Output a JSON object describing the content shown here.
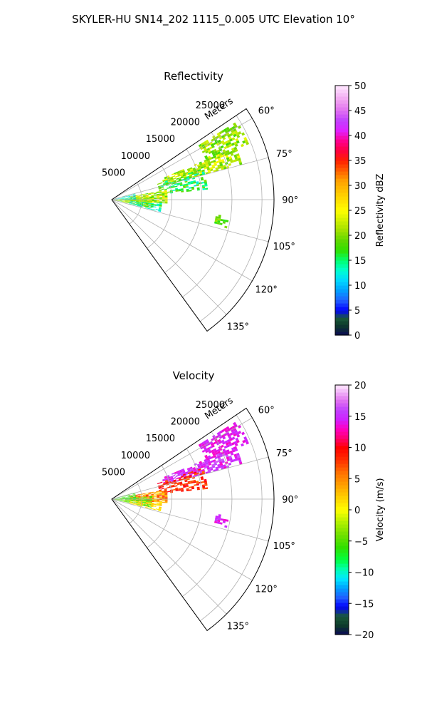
{
  "figure": {
    "title": "SKYLER-HU  SN14_202  1115_0.005 UTC Elevation 10°"
  },
  "chart_data": [
    {
      "type": "heatmap",
      "projection": "polar-sector",
      "title": "Reflectivity",
      "radial_axis_label": "Meters",
      "radial_ticks": [
        5000,
        10000,
        15000,
        20000,
        25000
      ],
      "radial_tick_labels": [
        "5000",
        "10000",
        "15000",
        "20000",
        "25000"
      ],
      "radial_range": [
        0,
        27000
      ],
      "azimuth_range_deg": [
        56,
        144
      ],
      "azimuth_ticks_deg": [
        60,
        75,
        90,
        105,
        120,
        135
      ],
      "azimuth_tick_labels": [
        "60°",
        "75°",
        "90°",
        "105°",
        "120°",
        "135°"
      ],
      "grid": true,
      "colorbar": {
        "label": "Reflectivity dBZ",
        "range": [
          0,
          50
        ],
        "ticks": [
          0,
          5,
          10,
          15,
          20,
          25,
          30,
          35,
          40,
          45,
          50
        ],
        "tick_labels": [
          "0",
          "5",
          "10",
          "15",
          "20",
          "25",
          "30",
          "35",
          "40",
          "45",
          "50"
        ],
        "stops": [
          {
            "v": 0,
            "color": "#0a0a55"
          },
          {
            "v": 2,
            "color": "#0d3a2a"
          },
          {
            "v": 3.5,
            "color": "#1a5a3a"
          },
          {
            "v": 5,
            "color": "#0000ff"
          },
          {
            "v": 7,
            "color": "#2060ff"
          },
          {
            "v": 9,
            "color": "#00a0ff"
          },
          {
            "v": 11,
            "color": "#00d8ff"
          },
          {
            "v": 13,
            "color": "#00ffd0"
          },
          {
            "v": 15,
            "color": "#00ff70"
          },
          {
            "v": 17,
            "color": "#30e000"
          },
          {
            "v": 19,
            "color": "#60d800"
          },
          {
            "v": 21,
            "color": "#a0e000"
          },
          {
            "v": 23,
            "color": "#d0f000"
          },
          {
            "v": 25,
            "color": "#ffff00"
          },
          {
            "v": 28,
            "color": "#ffd000"
          },
          {
            "v": 31,
            "color": "#ffa000"
          },
          {
            "v": 33,
            "color": "#ff6000"
          },
          {
            "v": 35,
            "color": "#ff2000"
          },
          {
            "v": 37,
            "color": "#ff0040"
          },
          {
            "v": 39,
            "color": "#ff0090"
          },
          {
            "v": 41,
            "color": "#e020ff"
          },
          {
            "v": 43,
            "color": "#c040ff"
          },
          {
            "v": 45,
            "color": "#e070f0"
          },
          {
            "v": 47,
            "color": "#f0a0f0"
          },
          {
            "v": 50,
            "color": "#ffe8ff"
          }
        ]
      },
      "echo_regions": [
        {
          "az": [
            58,
            68
          ],
          "r": [
            17000,
            24500
          ],
          "v": [
            17,
            24
          ],
          "density": 0.62
        },
        {
          "az": [
            67,
            75
          ],
          "r": [
            9000,
            22500
          ],
          "v": [
            18,
            26
          ],
          "density": 0.7
        },
        {
          "az": [
            71,
            84
          ],
          "r": [
            8000,
            16000
          ],
          "v": [
            12,
            21
          ],
          "density": 0.55
        },
        {
          "az": [
            80,
            94
          ],
          "r": [
            3000,
            9000
          ],
          "v": [
            17,
            28
          ],
          "density": 0.8
        },
        {
          "az": [
            86,
            102
          ],
          "r": [
            0,
            6500
          ],
          "v": [
            16,
            25
          ],
          "density": 0.8
        },
        {
          "az": [
            94,
            104
          ],
          "r": [
            3000,
            8000
          ],
          "v": [
            10,
            18
          ],
          "density": 0.55
        },
        {
          "az": [
            74,
            90
          ],
          "r": [
            0,
            4000
          ],
          "v": [
            8,
            16
          ],
          "density": 0.5
        },
        {
          "az": [
            98,
            104
          ],
          "r": [
            17500,
            19500
          ],
          "v": [
            16,
            22
          ],
          "density": 0.6
        }
      ]
    },
    {
      "type": "heatmap",
      "projection": "polar-sector",
      "title": "Velocity",
      "radial_axis_label": "Meters",
      "radial_ticks": [
        5000,
        10000,
        15000,
        20000,
        25000
      ],
      "radial_tick_labels": [
        "5000",
        "10000",
        "15000",
        "20000",
        "25000"
      ],
      "radial_range": [
        0,
        27000
      ],
      "azimuth_range_deg": [
        56,
        144
      ],
      "azimuth_ticks_deg": [
        60,
        75,
        90,
        105,
        120,
        135
      ],
      "azimuth_tick_labels": [
        "60°",
        "75°",
        "90°",
        "105°",
        "120°",
        "135°"
      ],
      "grid": true,
      "colorbar": {
        "label": "Velocity (m/s)",
        "range": [
          -20,
          20
        ],
        "ticks": [
          -20,
          -15,
          -10,
          -5,
          0,
          5,
          10,
          15,
          20
        ],
        "tick_labels": [
          "−20",
          "−15",
          "−10",
          "−5",
          "0",
          "5",
          "10",
          "15",
          "20"
        ],
        "stops": [
          {
            "v": -20,
            "color": "#0a0a55"
          },
          {
            "v": -18.5,
            "color": "#0d3a2a"
          },
          {
            "v": -17,
            "color": "#1a5a3a"
          },
          {
            "v": -15.5,
            "color": "#0000ff"
          },
          {
            "v": -14,
            "color": "#2060ff"
          },
          {
            "v": -12.5,
            "color": "#00a0ff"
          },
          {
            "v": -11,
            "color": "#00e8ff"
          },
          {
            "v": -9.5,
            "color": "#00ffb0"
          },
          {
            "v": -8,
            "color": "#00ff40"
          },
          {
            "v": -6,
            "color": "#30e000"
          },
          {
            "v": -4,
            "color": "#70e000"
          },
          {
            "v": -2,
            "color": "#b0f000"
          },
          {
            "v": 0,
            "color": "#ffff00"
          },
          {
            "v": 2,
            "color": "#ffd000"
          },
          {
            "v": 4,
            "color": "#ffa000"
          },
          {
            "v": 6,
            "color": "#ff7000"
          },
          {
            "v": 8,
            "color": "#ff3000"
          },
          {
            "v": 10,
            "color": "#ff0000"
          },
          {
            "v": 11.5,
            "color": "#ff0070"
          },
          {
            "v": 13,
            "color": "#ff00c0"
          },
          {
            "v": 14.5,
            "color": "#d020ff"
          },
          {
            "v": 16,
            "color": "#c040ff"
          },
          {
            "v": 17.5,
            "color": "#e070f0"
          },
          {
            "v": 20,
            "color": "#ffe8ff"
          }
        ]
      },
      "echo_regions": [
        {
          "az": [
            58,
            68
          ],
          "r": [
            17000,
            24500
          ],
          "v": [
            13,
            15
          ],
          "density": 0.62
        },
        {
          "az": [
            67,
            75
          ],
          "r": [
            9000,
            22500
          ],
          "v": [
            13,
            17
          ],
          "density": 0.7
        },
        {
          "az": [
            71,
            84
          ],
          "r": [
            8000,
            16000
          ],
          "v": [
            6,
            11
          ],
          "density": 0.55
        },
        {
          "az": [
            80,
            94
          ],
          "r": [
            3000,
            9000
          ],
          "v": [
            1,
            9
          ],
          "density": 0.8
        },
        {
          "az": [
            86,
            102
          ],
          "r": [
            0,
            6500
          ],
          "v": [
            -7,
            -2
          ],
          "density": 0.8
        },
        {
          "az": [
            94,
            104
          ],
          "r": [
            3000,
            8000
          ],
          "v": [
            0,
            3
          ],
          "density": 0.55
        },
        {
          "az": [
            74,
            90
          ],
          "r": [
            0,
            4000
          ],
          "v": [
            -9,
            -4
          ],
          "density": 0.5
        },
        {
          "az": [
            98,
            104
          ],
          "r": [
            17500,
            19500
          ],
          "v": [
            13,
            16
          ],
          "density": 0.6
        }
      ]
    }
  ]
}
